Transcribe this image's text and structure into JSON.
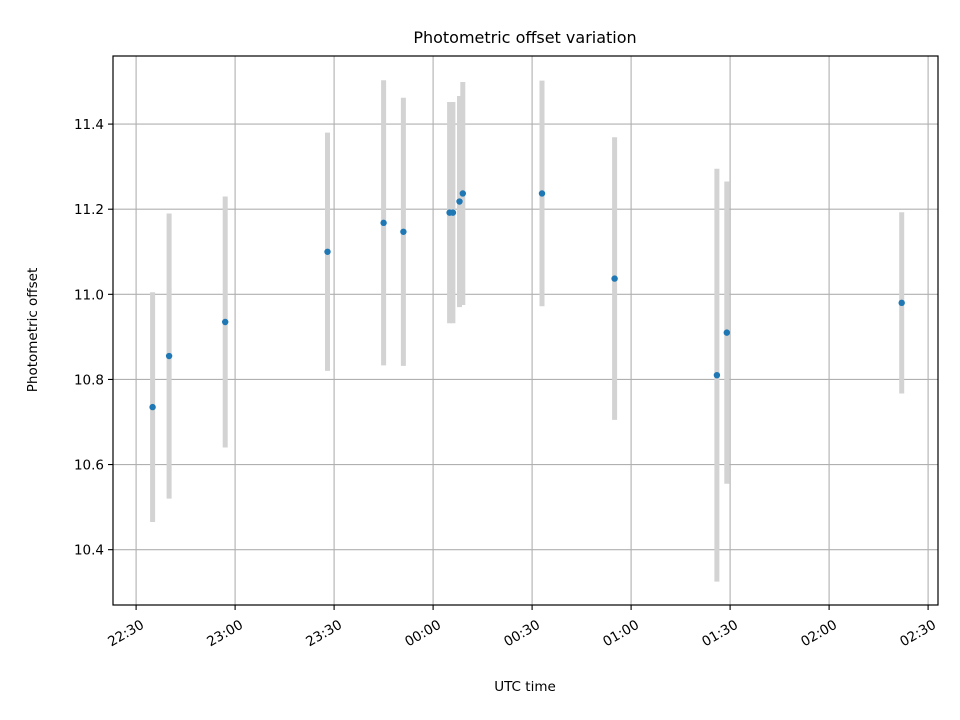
{
  "chart_data": {
    "type": "scatter",
    "title": "Photometric offset variation",
    "xlabel": "UTC time",
    "ylabel": "Photometric offset",
    "x_ticks": [
      "22:30",
      "23:00",
      "23:30",
      "00:00",
      "00:30",
      "01:00",
      "01:30",
      "02:00",
      "02:30"
    ],
    "y_ticks": [
      "10.4",
      "10.6",
      "10.8",
      "11.0",
      "11.2",
      "11.4"
    ],
    "y_tick_values": [
      10.4,
      10.6,
      10.8,
      11.0,
      11.2,
      11.4
    ],
    "xlim": [
      "22:23",
      "02:33"
    ],
    "ylim": [
      10.27,
      11.56
    ],
    "grid": true,
    "colors": {
      "point": "#1f77b4",
      "errorbar": "#d3d3d3",
      "grid": "#b0b0b0"
    },
    "points": [
      {
        "x": "22:35",
        "y": 10.735,
        "err": 0.27
      },
      {
        "x": "22:40",
        "y": 10.855,
        "err": 0.335
      },
      {
        "x": "22:57",
        "y": 10.935,
        "err": 0.295
      },
      {
        "x": "23:28",
        "y": 11.1,
        "err": 0.28
      },
      {
        "x": "23:45",
        "y": 11.168,
        "err": 0.335
      },
      {
        "x": "23:51",
        "y": 11.147,
        "err": 0.315
      },
      {
        "x": "00:05",
        "y": 11.192,
        "err": 0.26
      },
      {
        "x": "00:06",
        "y": 11.192,
        "err": 0.26
      },
      {
        "x": "00:08",
        "y": 11.218,
        "err": 0.248
      },
      {
        "x": "00:09",
        "y": 11.237,
        "err": 0.262
      },
      {
        "x": "00:33",
        "y": 11.237,
        "err": 0.265
      },
      {
        "x": "00:55",
        "y": 11.037,
        "err": 0.332
      },
      {
        "x": "01:26",
        "y": 10.81,
        "err": 0.485
      },
      {
        "x": "01:29",
        "y": 10.91,
        "err": 0.355
      },
      {
        "x": "02:22",
        "y": 10.98,
        "err": 0.213
      }
    ]
  }
}
